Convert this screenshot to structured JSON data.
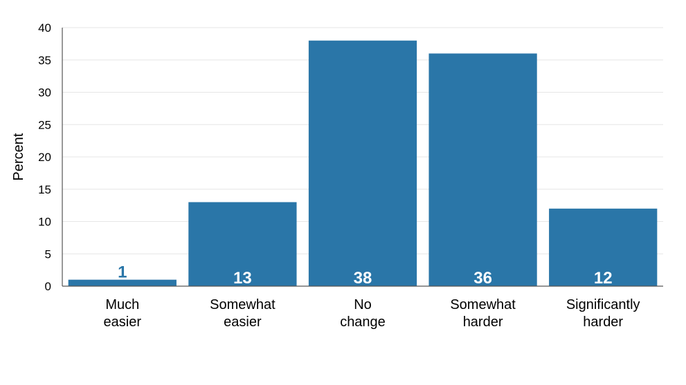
{
  "chart_data": {
    "type": "bar",
    "title": "",
    "xlabel": "",
    "ylabel": "Percent",
    "categories": [
      [
        "Much",
        "easier"
      ],
      [
        "Somewhat",
        "easier"
      ],
      [
        "No",
        "change"
      ],
      [
        "Somewhat",
        "harder"
      ],
      [
        "Significantly",
        "harder"
      ]
    ],
    "values": [
      1,
      13,
      38,
      36,
      12
    ],
    "data_labels": [
      "1",
      "13",
      "38",
      "36",
      "12"
    ],
    "ylim": [
      0,
      40
    ],
    "yticks": [
      0,
      5,
      10,
      15,
      20,
      25,
      30,
      35,
      40
    ],
    "ytick_labels": [
      "0",
      "5",
      "10",
      "15",
      "20",
      "25",
      "30",
      "35",
      "40"
    ],
    "grid": true,
    "legend": "none",
    "colors": {
      "bar": "#2a76a8",
      "data_label_inside": "#ffffff",
      "data_label_above": "#2a76a8",
      "grid": "#e6e6e6",
      "axis": "#555555"
    }
  }
}
